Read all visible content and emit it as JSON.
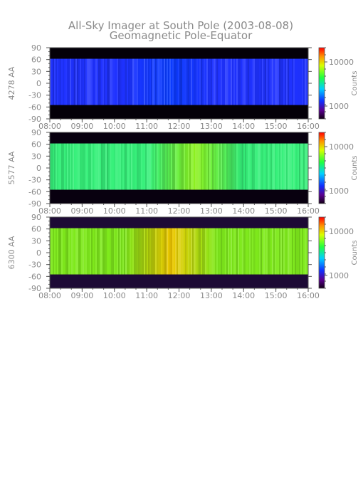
{
  "figure": {
    "title": "All-Sky Imager at South Pole (2003-08-08)",
    "subtitle": "Geomagnetic Pole-Equator"
  },
  "colors": {
    "text": "#8a8a8a",
    "axis": "#555555",
    "band_off": "#0c0012",
    "band_off_purple": "#1d0a35"
  },
  "chart_data": [
    {
      "type": "heatmap",
      "panel_label": "4278 AA",
      "x": {
        "range": [
          "08:00",
          "16:00"
        ],
        "ticks": [
          "08:00",
          "09:00",
          "10:00",
          "11:00",
          "12:00",
          "13:00",
          "14:00",
          "15:00",
          "16:00"
        ]
      },
      "y": {
        "range": [
          -90,
          90
        ],
        "ticks": [
          90,
          60,
          30,
          0,
          -30,
          -60,
          -90
        ]
      },
      "data_band_y": [
        -55,
        62
      ],
      "base_color": "#1f32ff",
      "highlight_color": "#0a3cff",
      "highlight_time": "11:40",
      "outside_color": "#040008",
      "colorbar": {
        "label": "Counts",
        "scale": "log",
        "ticks": [
          "10000",
          "1000"
        ]
      }
    },
    {
      "type": "heatmap",
      "panel_label": "5577 AA",
      "x": {
        "range": [
          "08:00",
          "16:00"
        ],
        "ticks": [
          "08:00",
          "09:00",
          "10:00",
          "11:00",
          "12:00",
          "13:00",
          "14:00",
          "15:00",
          "16:00"
        ]
      },
      "y": {
        "range": [
          -90,
          90
        ],
        "ticks": [
          90,
          60,
          30,
          0,
          -30,
          -60,
          -90
        ]
      },
      "data_band_y": [
        -55,
        62
      ],
      "base_color": "#36f07a",
      "highlight_color": "#8cf01c",
      "highlight_time": "12:30",
      "outside_color": "#08000f",
      "colorbar": {
        "label": "Counts",
        "scale": "log",
        "ticks": [
          "10000",
          "1000"
        ]
      }
    },
    {
      "type": "heatmap",
      "panel_label": "6300 AA",
      "x": {
        "range": [
          "08:00",
          "16:00"
        ],
        "ticks": [
          "08:00",
          "09:00",
          "10:00",
          "11:00",
          "12:00",
          "13:00",
          "14:00",
          "15:00",
          "16:00"
        ]
      },
      "y": {
        "range": [
          -90,
          90
        ],
        "ticks": [
          90,
          60,
          30,
          0,
          -30,
          -60,
          -90
        ]
      },
      "data_band_y": [
        -55,
        62
      ],
      "base_color": "#7fea1c",
      "highlight_color": "#f0c800",
      "highlight_time": "11:45",
      "outside_color": "#23113d",
      "colorbar": {
        "label": "Counts",
        "scale": "log",
        "ticks": [
          "10000",
          "1000"
        ]
      }
    }
  ]
}
